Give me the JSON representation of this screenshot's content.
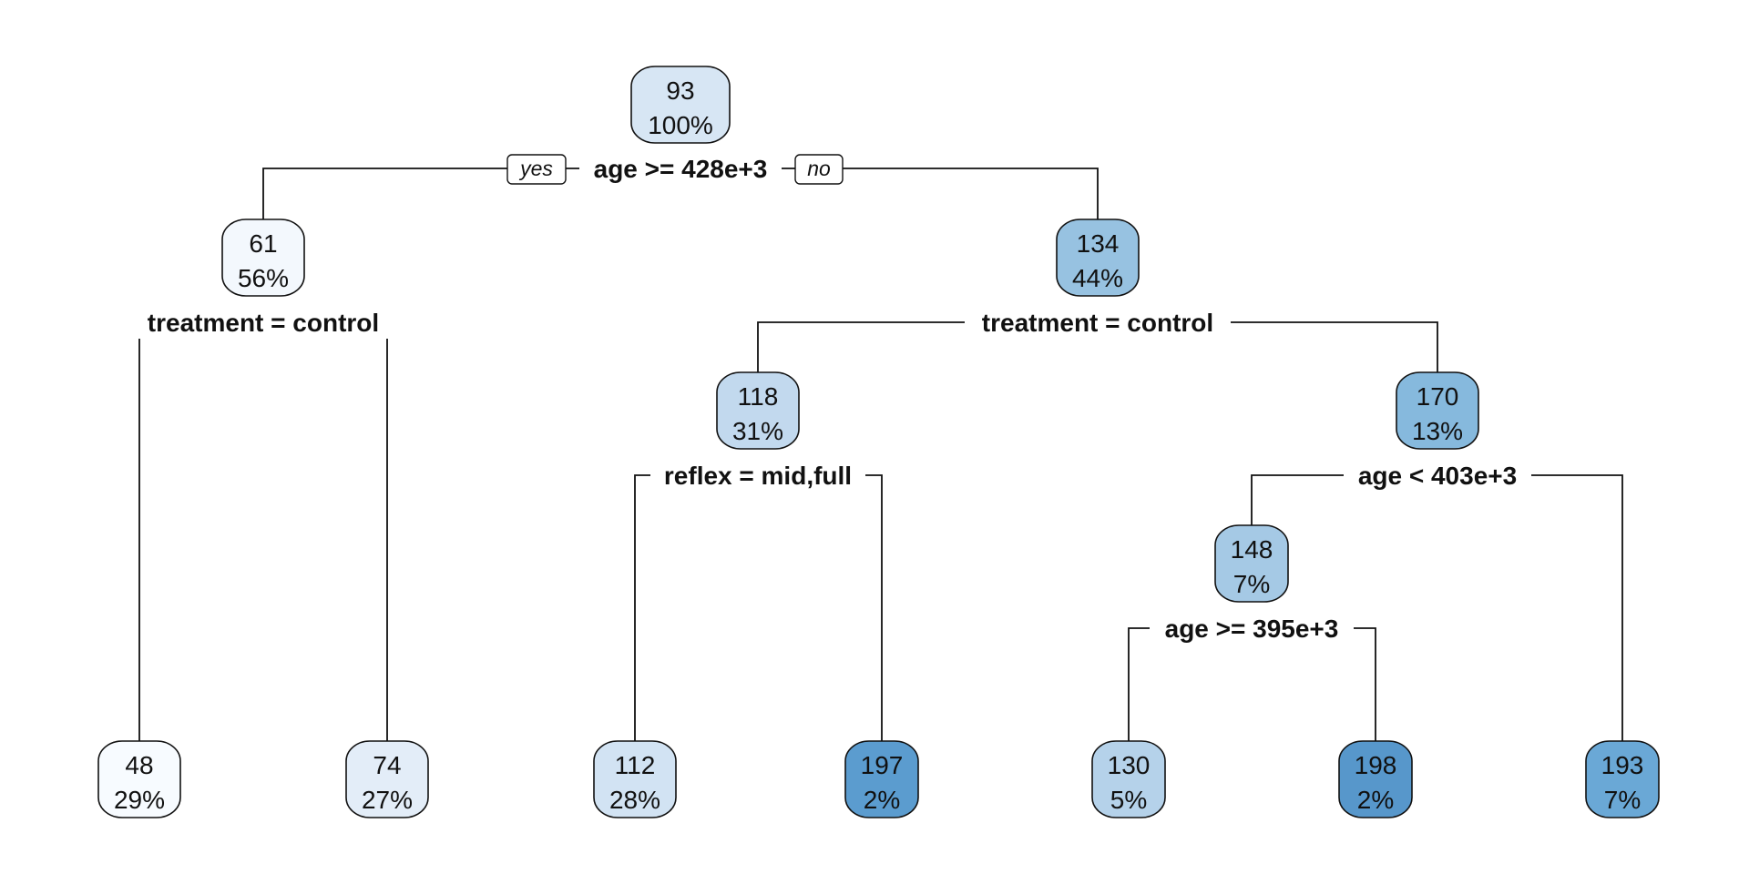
{
  "tree": {
    "branch_labels": {
      "yes": "yes",
      "no": "no"
    },
    "nodes": [
      {
        "id": "n1",
        "value": "93",
        "percent": "100%",
        "color": "#d7e6f4"
      },
      {
        "id": "n2",
        "value": "61",
        "percent": "56%",
        "color": "#f3f8fd"
      },
      {
        "id": "n3",
        "value": "134",
        "percent": "44%",
        "color": "#97c2e1"
      },
      {
        "id": "n4",
        "value": "48",
        "percent": "29%",
        "color": "#f7fbff"
      },
      {
        "id": "n5",
        "value": "74",
        "percent": "27%",
        "color": "#e3edf8"
      },
      {
        "id": "n6",
        "value": "118",
        "percent": "31%",
        "color": "#c2d9ee"
      },
      {
        "id": "n7",
        "value": "170",
        "percent": "13%",
        "color": "#86b9dd"
      },
      {
        "id": "n8",
        "value": "112",
        "percent": "28%",
        "color": "#d2e3f3"
      },
      {
        "id": "n9",
        "value": "197",
        "percent": "2%",
        "color": "#5b9ccf"
      },
      {
        "id": "n10",
        "value": "148",
        "percent": "7%",
        "color": "#a5c9e5"
      },
      {
        "id": "n11",
        "value": "193",
        "percent": "7%",
        "color": "#6aa8d6"
      },
      {
        "id": "n12",
        "value": "130",
        "percent": "5%",
        "color": "#b5d2ea"
      },
      {
        "id": "n13",
        "value": "198",
        "percent": "2%",
        "color": "#5797cb"
      }
    ],
    "splits": [
      {
        "node": "n1",
        "label": "age >= 428e+3"
      },
      {
        "node": "n2",
        "label": "treatment = control"
      },
      {
        "node": "n3",
        "label": "treatment = control"
      },
      {
        "node": "n6",
        "label": "reflex = mid,full"
      },
      {
        "node": "n7",
        "label": "age < 403e+3"
      },
      {
        "node": "n10",
        "label": "age >= 395e+3"
      }
    ]
  }
}
